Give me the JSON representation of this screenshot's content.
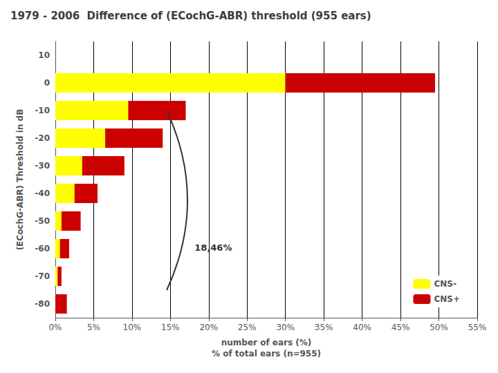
{
  "chart_data": {
    "type": "bar",
    "orientation": "horizontal",
    "stacked": true,
    "title": "1979 - 2006  Difference of (ECochG-ABR) threshold (955 ears)",
    "xlabel": "number of ears (%)\n% of total ears (n=955)",
    "ylabel": "(ECochG-ABR) Threshold in dB",
    "categories": [
      "10",
      "0",
      "-10",
      "-20",
      "-30",
      "-40",
      "-50",
      "-60",
      "-70",
      "-80"
    ],
    "series": [
      {
        "name": "CNS-",
        "color": "#FFFF00",
        "values": [
          0,
          30.0,
          9.5,
          6.5,
          3.5,
          2.5,
          0.8,
          0.6,
          0.3,
          0
        ]
      },
      {
        "name": "CNS+",
        "color": "#CC0000",
        "values": [
          0,
          19.5,
          7.5,
          7.5,
          5.5,
          3.0,
          2.5,
          1.2,
          0.5,
          1.5
        ]
      }
    ],
    "xlim": [
      0,
      55
    ],
    "xticks": [
      {
        "value": 0,
        "label": "0%"
      },
      {
        "value": 5,
        "label": "5%"
      },
      {
        "value": 10,
        "label": "10%"
      },
      {
        "value": 15,
        "label": "15%"
      },
      {
        "value": 20,
        "label": "20%"
      },
      {
        "value": 25,
        "label": "25%"
      },
      {
        "value": 30,
        "label": "30%"
      },
      {
        "value": 35,
        "label": "35%"
      },
      {
        "value": 40,
        "label": "40%"
      },
      {
        "value": 45,
        "label": "45%"
      },
      {
        "value": 50,
        "label": "50%"
      },
      {
        "value": 55,
        "label": "55%"
      }
    ],
    "grid": true,
    "legend": "lower right",
    "annotations": [
      {
        "text": "18,46%"
      }
    ]
  }
}
